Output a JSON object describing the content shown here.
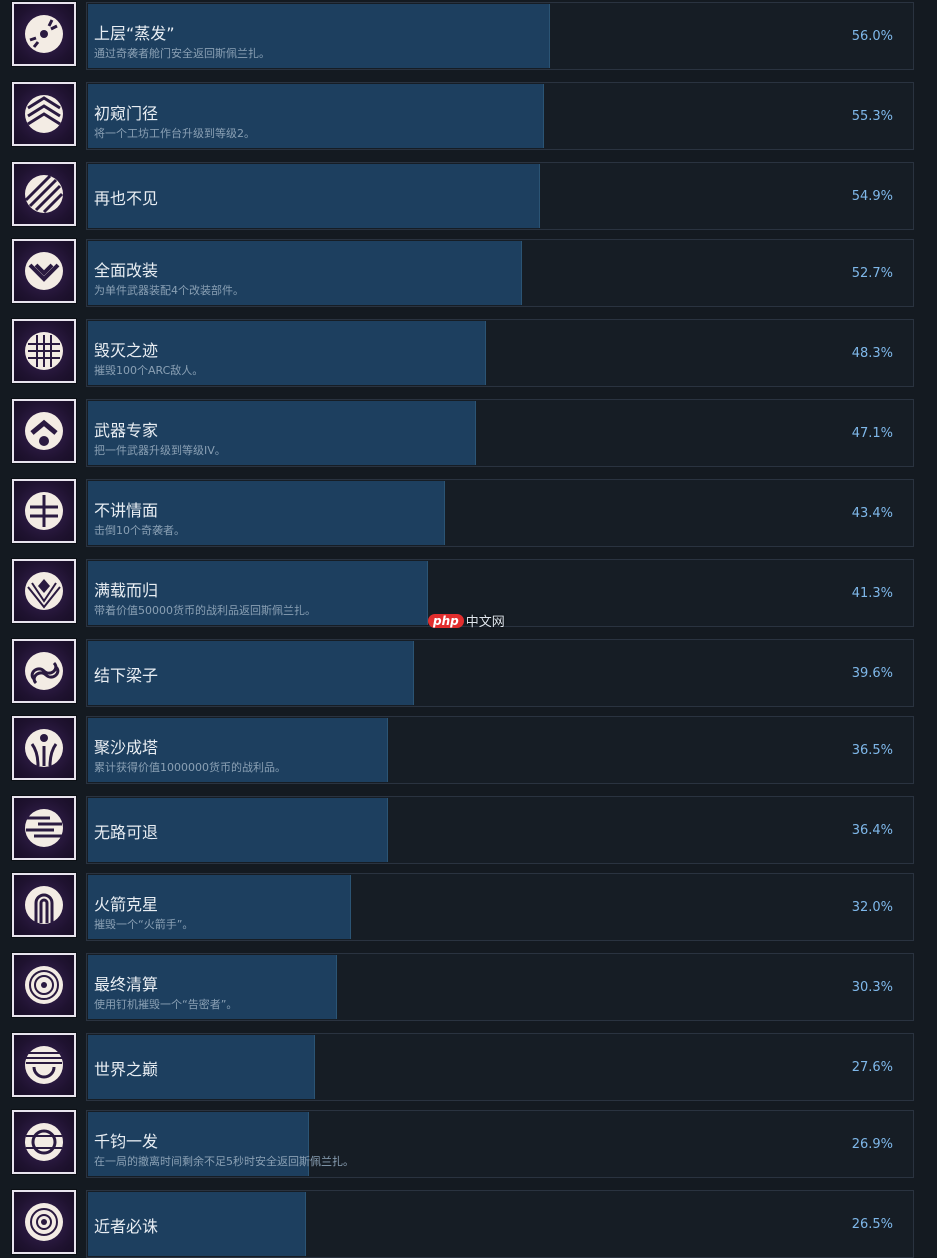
{
  "achievements": [
    {
      "title": "上层“蒸发”",
      "description": "通过奇袭者舱门安全返回斯佩兰扎。",
      "percent_label": "56.0%",
      "percent": 56.0,
      "icon": "disc-burst-icon"
    },
    {
      "title": "初窥门径",
      "description": "将一个工坊工作台升级到等级2。",
      "percent_label": "55.3%",
      "percent": 55.3,
      "icon": "chevrons-up-icon"
    },
    {
      "title": "再也不见",
      "description": "",
      "percent_label": "54.9%",
      "percent": 54.9,
      "icon": "diagonal-stripes-icon"
    },
    {
      "title": "全面改装",
      "description": "为单件武器装配4个改装部件。",
      "percent_label": "52.7%",
      "percent": 52.7,
      "icon": "chevron-down-icon"
    },
    {
      "title": "毁灭之迹",
      "description": "摧毁100个ARC敌人。",
      "percent_label": "48.3%",
      "percent": 48.3,
      "icon": "grid-dots-icon"
    },
    {
      "title": "武器专家",
      "description": "把一件武器升级到等级IV。",
      "percent_label": "47.1%",
      "percent": 47.1,
      "icon": "chevron-circle-icon"
    },
    {
      "title": "不讲情面",
      "description": "击倒10个奇袭者。",
      "percent_label": "43.4%",
      "percent": 43.4,
      "icon": "split-circle-icon"
    },
    {
      "title": "满载而归",
      "description": "带着价值50000货币的战利品返回斯佩兰扎。",
      "percent_label": "41.3%",
      "percent": 41.3,
      "icon": "diamond-fan-icon"
    },
    {
      "title": "结下梁子",
      "description": "",
      "percent_label": "39.6%",
      "percent": 39.6,
      "icon": "link-icon"
    },
    {
      "title": "聚沙成塔",
      "description": "累计获得价值1000000货币的战利品。",
      "percent_label": "36.5%",
      "percent": 36.5,
      "icon": "figure-arcs-icon"
    },
    {
      "title": "无路可退",
      "description": "",
      "percent_label": "36.4%",
      "percent": 36.4,
      "icon": "horizontal-stripes-icon"
    },
    {
      "title": "火箭克星",
      "description": "摧毁一个“火箭手”。",
      "percent_label": "32.0%",
      "percent": 32.0,
      "icon": "arch-icon"
    },
    {
      "title": "最终清算",
      "description": "使用钉机摧毁一个“告密者”。",
      "percent_label": "30.3%",
      "percent": 30.3,
      "icon": "spiral-icon"
    },
    {
      "title": "世界之巅",
      "description": "",
      "percent_label": "27.6%",
      "percent": 27.6,
      "icon": "horizon-icon"
    },
    {
      "title": "千钧一发",
      "description": "在一局的撤离时间剩余不足5秒时安全返回斯佩兰扎。",
      "percent_label": "26.9%",
      "percent": 26.9,
      "icon": "target-rings-icon"
    },
    {
      "title": "近者必诛",
      "description": "",
      "percent_label": "26.5%",
      "percent": 26.5,
      "icon": "concentric-icon"
    }
  ],
  "watermark": {
    "logo": "php",
    "text": "中文网"
  },
  "colors": {
    "fill": "#1d3f5f",
    "percent_text": "#7fb8ea",
    "icon_fg": "#f3ece4",
    "icon_bg": "#2a1a40"
  }
}
